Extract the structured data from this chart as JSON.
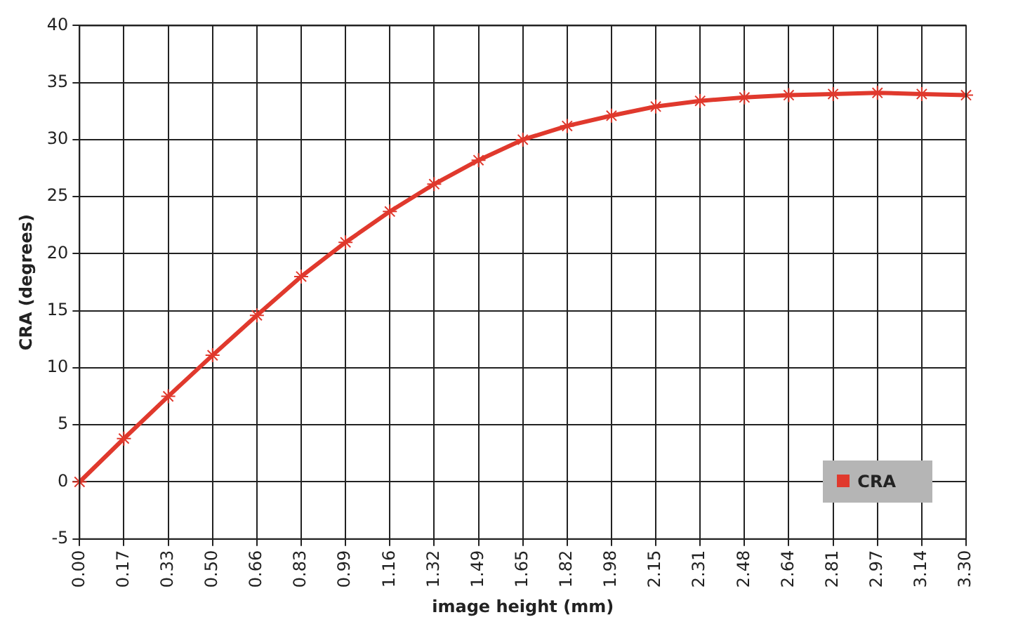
{
  "chart_data": {
    "type": "line",
    "xlabel": "image height (mm)",
    "ylabel": "CRA (degrees)",
    "categories": [
      "0.00",
      "0.17",
      "0.33",
      "0.50",
      "0.66",
      "0.83",
      "0.99",
      "1.16",
      "1.32",
      "1.49",
      "1.65",
      "1.82",
      "1.98",
      "2.15",
      "2.31",
      "2.48",
      "2.64",
      "2.81",
      "2.97",
      "3.14",
      "3.30"
    ],
    "series": [
      {
        "name": "CRA",
        "color": "#e0392d",
        "values": [
          0,
          3.8,
          7.5,
          11.1,
          14.6,
          18.0,
          21.0,
          23.7,
          26.1,
          28.2,
          30.0,
          31.2,
          32.1,
          32.9,
          33.4,
          33.7,
          33.9,
          34.0,
          34.1,
          34.0,
          33.9
        ]
      }
    ],
    "ylim": [
      -5,
      40
    ],
    "yticks": [
      -5,
      0,
      5,
      10,
      15,
      20,
      25,
      30,
      35,
      40
    ],
    "grid": true,
    "legend": "bottom right",
    "marker": "cross",
    "line_style": "solid"
  }
}
